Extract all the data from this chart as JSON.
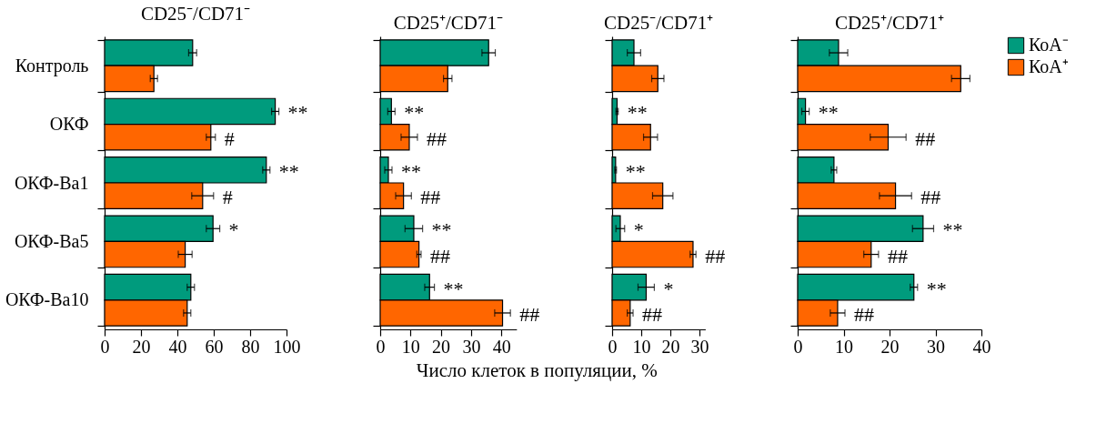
{
  "chart_data": [
    {
      "type": "bar",
      "orientation": "horizontal",
      "title": "CD25⁻/CD71⁻",
      "categories": [
        "Контроль",
        "ОКФ",
        "ОКФ-Ba1",
        "ОКФ-Ba5",
        "ОКФ-Ba10"
      ],
      "xlim": [
        0,
        100
      ],
      "xticks": [
        0,
        20,
        40,
        60,
        80,
        100
      ],
      "legend": "top right",
      "series": [
        {
          "name": "КоА⁻",
          "color": "#009b7d",
          "values": [
            48.4,
            93.8,
            88.9,
            59.6,
            47.4
          ],
          "errors": [
            2.2,
            2,
            2,
            3.7,
            2
          ],
          "value_labels": [
            null,
            "**",
            "**",
            "*",
            null
          ]
        },
        {
          "name": "КоА⁺",
          "color": "#ff6600",
          "values": [
            27.1,
            58.4,
            53.9,
            44.3,
            45.4
          ],
          "errors": [
            2,
            2.5,
            6,
            3.8,
            2
          ],
          "value_labels": [
            null,
            "#",
            "#",
            null,
            null
          ]
        }
      ]
    },
    {
      "type": "bar",
      "orientation": "horizontal",
      "title": "CD25⁺/CD71⁻",
      "xlabel": "Число клеток в популяции, %",
      "xlim": [
        0,
        45
      ],
      "xticks": [
        0,
        10,
        20,
        30,
        40
      ],
      "tick_labels": "x",
      "series": [
        {
          "color": "#009b7d",
          "values": [
            35.8,
            3.7,
            2.7,
            11.1,
            16.3
          ],
          "errors": [
            2.2,
            1.2,
            1.2,
            2.9,
            1.6
          ],
          "value_labels": [
            null,
            "**",
            "**",
            "**",
            "**"
          ]
        },
        {
          "color": "#ff6600",
          "values": [
            22.3,
            9.6,
            7.7,
            12.8,
            40.4
          ],
          "errors": [
            1.4,
            2.7,
            2.6,
            0.7,
            2.6
          ],
          "value_labels": [
            null,
            "##",
            "##",
            "##",
            "##"
          ]
        }
      ]
    },
    {
      "type": "bar",
      "orientation": "horizontal",
      "title": "CD25⁻/CD71⁺",
      "xlim": [
        0,
        32
      ],
      "xticks": [
        0,
        10,
        20,
        30
      ],
      "tick_labels": "x",
      "series": [
        {
          "color": "#009b7d",
          "values": [
            7.5,
            1.7,
            1.2,
            2.8,
            11.7
          ],
          "errors": [
            2.3,
            0.4,
            0.3,
            1.5,
            2.8
          ],
          "value_labels": [
            null,
            "**",
            "**",
            "*",
            "*"
          ]
        },
        {
          "color": "#ff6600",
          "values": [
            15.7,
            13.2,
            17.4,
            27.8,
            6.2
          ],
          "errors": [
            2.1,
            2.4,
            3.5,
            1,
            1
          ],
          "value_labels": [
            null,
            null,
            null,
            "##",
            "##"
          ]
        }
      ]
    },
    {
      "type": "bar",
      "orientation": "horizontal",
      "title": "CD25⁺/CD71⁺",
      "xlim": [
        0,
        40
      ],
      "xticks": [
        0,
        10,
        20,
        30,
        40
      ],
      "tick_labels": "x",
      "series": [
        {
          "color": "#009b7d",
          "values": [
            8.9,
            1.7,
            7.9,
            27.3,
            25.3
          ],
          "errors": [
            2,
            0.8,
            0.6,
            2.3,
            0.8
          ],
          "value_labels": [
            null,
            "**",
            null,
            "**",
            "**"
          ]
        },
        {
          "color": "#ff6600",
          "values": [
            35.5,
            19.7,
            21.3,
            16,
            8.7
          ],
          "errors": [
            2,
            3.9,
            3.5,
            1.6,
            1.6
          ],
          "value_labels": [
            null,
            "##",
            "##",
            "##",
            "##"
          ]
        }
      ]
    }
  ]
}
